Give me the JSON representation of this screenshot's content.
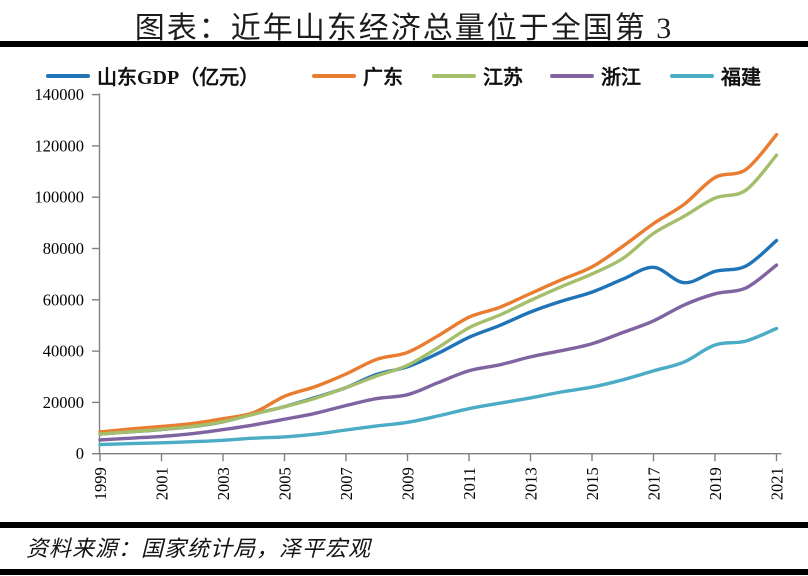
{
  "title": "图表：近年山东经济总量位于全国第 3",
  "source_note": "资料来源：国家统计局，泽平宏观",
  "colors": {
    "rule": "#000000",
    "axis": "#808080",
    "tick_label": "#000000"
  },
  "chart_data": {
    "type": "line",
    "title": "图表：近年山东经济总量位于全国第 3",
    "unit": "亿元",
    "grid": false,
    "legend_position": "top",
    "ylim": [
      0,
      140000
    ],
    "y_ticks": [
      0,
      20000,
      40000,
      60000,
      80000,
      100000,
      120000,
      140000
    ],
    "x": [
      1999,
      2000,
      2001,
      2002,
      2003,
      2004,
      2005,
      2006,
      2007,
      2008,
      2009,
      2010,
      2011,
      2012,
      2013,
      2014,
      2015,
      2016,
      2017,
      2018,
      2019,
      2020,
      2021
    ],
    "x_tick_labels": [
      "1999",
      "2001",
      "2003",
      "2005",
      "2007",
      "2009",
      "2011",
      "2013",
      "2015",
      "2017",
      "2019",
      "2021"
    ],
    "series": [
      {
        "name": "山东GDP（亿元）",
        "slug": "shandong",
        "color": "#1F74B8",
        "values": [
          7662,
          8542,
          9438,
          10552,
          12436,
          15491,
          18367,
          21900,
          25777,
          30933,
          33897,
          39170,
          45362,
          50013,
          55230,
          59427,
          63002,
          68024,
          72678,
          66649,
          71068,
          73129,
          83096
        ]
      },
      {
        "name": "广东",
        "slug": "guangdong",
        "color": "#E97C2E",
        "values": [
          8464,
          9662,
          10648,
          11770,
          13626,
          16040,
          22367,
          26160,
          31084,
          36797,
          39483,
          46013,
          53210,
          57068,
          62475,
          67810,
          72813,
          80855,
          89705,
          97278,
          107671,
          110761,
          124370
        ]
      },
      {
        "name": "江苏",
        "slug": "jiangsu",
        "color": "#A5BE6B",
        "values": [
          7698,
          8582,
          9512,
          10632,
          12461,
          15404,
          18306,
          21645,
          25741,
          30313,
          34457,
          41425,
          49110,
          54058,
          59753,
          65088,
          70116,
          76086,
          85901,
          92595,
          99632,
          102719,
          116364
        ]
      },
      {
        "name": "浙江",
        "slug": "zhejiang",
        "color": "#8064A2",
        "values": [
          5365,
          6036,
          6748,
          7796,
          9395,
          11243,
          13438,
          15742,
          18780,
          21487,
          22990,
          27722,
          32319,
          34665,
          37757,
          40173,
          42886,
          47251,
          51768,
          58003,
          62352,
          64613,
          73516
        ]
      },
      {
        "name": "福建",
        "slug": "fujian",
        "color": "#4BACC6",
        "values": [
          3550,
          3920,
          4253,
          4682,
          5232,
          6053,
          6569,
          7615,
          9249,
          10823,
          12237,
          14737,
          17560,
          19702,
          21760,
          24056,
          25980,
          28811,
          32298,
          35804,
          42395,
          43904,
          48810
        ]
      }
    ]
  }
}
